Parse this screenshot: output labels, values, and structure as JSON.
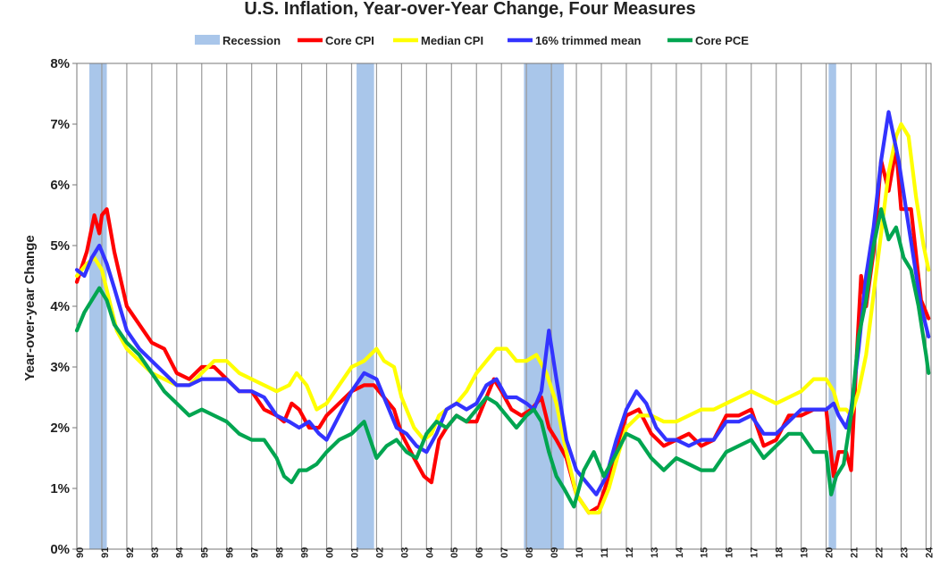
{
  "chart_data": {
    "type": "line",
    "title": "U.S. Inflation, Year-over-Year Change, Four Measures",
    "ylabel": "Year-over-year Change",
    "xlabel": "",
    "ylim": [
      0,
      8
    ],
    "y_ticks": [
      "0%",
      "1%",
      "2%",
      "3%",
      "4%",
      "5%",
      "6%",
      "7%",
      "8%"
    ],
    "xlim": [
      1990,
      2024.2
    ],
    "x_tick_labels": [
      "90",
      "91",
      "92",
      "93",
      "94",
      "95",
      "96",
      "97",
      "98",
      "99",
      "00",
      "01",
      "02",
      "03",
      "04",
      "05",
      "06",
      "07",
      "08",
      "09",
      "10",
      "11",
      "12",
      "13",
      "14",
      "15",
      "16",
      "17",
      "18",
      "19",
      "20",
      "21",
      "22",
      "23",
      "24"
    ],
    "grid": "vertical",
    "legend_position": "top",
    "legend": [
      {
        "label": "Recession",
        "color": "#a9c6ea",
        "kind": "area"
      },
      {
        "label": "Core CPI",
        "color": "#ff0000",
        "kind": "line"
      },
      {
        "label": "Median CPI",
        "color": "#ffff00",
        "kind": "line"
      },
      {
        "label": "16% trimmed mean",
        "color": "#3333ff",
        "kind": "line"
      },
      {
        "label": "Core PCE",
        "color": "#00a550",
        "kind": "line"
      }
    ],
    "recessions": [
      [
        1990.5,
        1991.2
      ],
      [
        2001.2,
        2001.9
      ],
      [
        2007.9,
        2009.5
      ],
      [
        2020.1,
        2020.4
      ]
    ],
    "series": [
      {
        "name": "Core CPI",
        "color": "#ff0000",
        "x": [
          1990,
          1990.4,
          1990.7,
          1990.9,
          1991,
          1991.2,
          1991.5,
          1992,
          1992.5,
          1993,
          1993.5,
          1994,
          1994.5,
          1995,
          1995.5,
          1996,
          1996.5,
          1997,
          1997.5,
          1998,
          1998.3,
          1998.6,
          1998.9,
          1999.3,
          1999.7,
          2000,
          2000.5,
          2001,
          2001.5,
          2001.9,
          2002.3,
          2002.7,
          2003,
          2003.5,
          2003.9,
          2004.2,
          2004.5,
          2004.8,
          2005.2,
          2005.6,
          2006,
          2006.3,
          2006.7,
          2007,
          2007.4,
          2007.8,
          2008.2,
          2008.6,
          2008.9,
          2009.2,
          2009.6,
          2010,
          2010.5,
          2010.9,
          2011.3,
          2011.7,
          2012,
          2012.5,
          2013,
          2013.5,
          2014,
          2014.5,
          2015,
          2015.5,
          2016,
          2016.5,
          2017,
          2017.5,
          2018,
          2018.5,
          2019,
          2019.5,
          2020,
          2020.3,
          2020.5,
          2020.8,
          2021,
          2021.2,
          2021.4,
          2021.6,
          2021.9,
          2022.2,
          2022.5,
          2022.8,
          2023,
          2023.4,
          2023.8,
          2024.1
        ],
        "values": [
          4.4,
          4.9,
          5.5,
          5.2,
          5.5,
          5.6,
          4.9,
          4.0,
          3.7,
          3.4,
          3.3,
          2.9,
          2.8,
          3.0,
          3.0,
          2.8,
          2.6,
          2.6,
          2.3,
          2.2,
          2.1,
          2.4,
          2.3,
          2.0,
          2.0,
          2.2,
          2.4,
          2.6,
          2.7,
          2.7,
          2.5,
          2.3,
          1.9,
          1.5,
          1.2,
          1.1,
          1.8,
          2.0,
          2.2,
          2.1,
          2.1,
          2.4,
          2.8,
          2.6,
          2.3,
          2.2,
          2.3,
          2.5,
          2.0,
          1.8,
          1.5,
          0.9,
          0.6,
          0.7,
          1.2,
          1.8,
          2.2,
          2.3,
          1.9,
          1.7,
          1.8,
          1.9,
          1.7,
          1.8,
          2.2,
          2.2,
          2.3,
          1.7,
          1.8,
          2.2,
          2.2,
          2.3,
          2.3,
          1.2,
          1.6,
          1.6,
          1.3,
          3.0,
          4.5,
          4.0,
          4.9,
          6.4,
          5.9,
          6.6,
          5.6,
          5.6,
          4.1,
          3.8
        ]
      },
      {
        "name": "Median CPI",
        "color": "#ffff00",
        "x": [
          1990,
          1990.4,
          1990.7,
          1991,
          1991.3,
          1991.6,
          1992,
          1992.5,
          1993,
          1993.5,
          1994,
          1994.5,
          1995,
          1995.5,
          1996,
          1996.5,
          1997,
          1997.5,
          1998,
          1998.5,
          1998.8,
          1999.2,
          1999.6,
          2000,
          2000.5,
          2001,
          2001.5,
          2002,
          2002.3,
          2002.7,
          2003,
          2003.5,
          2003.9,
          2004.2,
          2004.5,
          2004.8,
          2005.2,
          2005.6,
          2006,
          2006.4,
          2006.8,
          2007.2,
          2007.6,
          2008,
          2008.4,
          2008.8,
          2009.2,
          2009.6,
          2010,
          2010.5,
          2010.9,
          2011.3,
          2011.7,
          2012,
          2012.5,
          2013,
          2013.5,
          2014,
          2014.5,
          2015,
          2015.5,
          2016,
          2016.5,
          2017,
          2017.5,
          2018,
          2018.5,
          2019,
          2019.5,
          2020,
          2020.3,
          2020.5,
          2020.8,
          2021,
          2021.3,
          2021.6,
          2021.9,
          2022.2,
          2022.5,
          2022.8,
          2023,
          2023.3,
          2023.6,
          2023.9,
          2024.1
        ],
        "values": [
          4.5,
          4.7,
          4.8,
          4.6,
          4.1,
          3.6,
          3.3,
          3.1,
          2.9,
          2.8,
          2.7,
          2.7,
          2.9,
          3.1,
          3.1,
          2.9,
          2.8,
          2.7,
          2.6,
          2.7,
          2.9,
          2.7,
          2.3,
          2.4,
          2.7,
          3.0,
          3.1,
          3.3,
          3.1,
          3.0,
          2.5,
          2.0,
          1.8,
          1.9,
          2.2,
          2.3,
          2.4,
          2.6,
          2.9,
          3.1,
          3.3,
          3.3,
          3.1,
          3.1,
          3.2,
          2.9,
          2.4,
          1.6,
          0.9,
          0.6,
          0.6,
          1.0,
          1.6,
          2.0,
          2.2,
          2.2,
          2.1,
          2.1,
          2.2,
          2.3,
          2.3,
          2.4,
          2.5,
          2.6,
          2.5,
          2.4,
          2.5,
          2.6,
          2.8,
          2.8,
          2.6,
          2.3,
          2.3,
          2.2,
          2.6,
          3.2,
          4.2,
          5.2,
          6.2,
          6.8,
          7.0,
          6.8,
          5.8,
          5.0,
          4.6
        ]
      },
      {
        "name": "16% trimmed mean",
        "color": "#3333ff",
        "x": [
          1990,
          1990.3,
          1990.6,
          1990.9,
          1991.2,
          1991.5,
          1992,
          1992.5,
          1993,
          1993.5,
          1994,
          1994.5,
          1995,
          1995.5,
          1996,
          1996.5,
          1997,
          1997.5,
          1998,
          1998.5,
          1998.9,
          1999.3,
          1999.7,
          2000,
          2000.5,
          2001,
          2001.5,
          2002,
          2002.4,
          2002.8,
          2003.2,
          2003.6,
          2004,
          2004.4,
          2004.8,
          2005.2,
          2005.6,
          2006,
          2006.4,
          2006.8,
          2007.2,
          2007.6,
          2008,
          2008.3,
          2008.6,
          2008.9,
          2009.2,
          2009.6,
          2010,
          2010.4,
          2010.8,
          2011.2,
          2011.6,
          2012,
          2012.4,
          2012.8,
          2013.2,
          2013.6,
          2014,
          2014.5,
          2015,
          2015.5,
          2016,
          2016.5,
          2017,
          2017.5,
          2018,
          2018.5,
          2019,
          2019.5,
          2020,
          2020.3,
          2020.5,
          2020.8,
          2021,
          2021.3,
          2021.6,
          2021.9,
          2022.2,
          2022.5,
          2022.7,
          2022.9,
          2023.2,
          2023.5,
          2023.8,
          2024.1
        ],
        "values": [
          4.6,
          4.5,
          4.8,
          5.0,
          4.7,
          4.3,
          3.6,
          3.3,
          3.1,
          2.9,
          2.7,
          2.7,
          2.8,
          2.8,
          2.8,
          2.6,
          2.6,
          2.5,
          2.2,
          2.1,
          2.0,
          2.1,
          1.9,
          1.8,
          2.2,
          2.6,
          2.9,
          2.8,
          2.4,
          2.0,
          1.9,
          1.7,
          1.6,
          1.9,
          2.3,
          2.4,
          2.3,
          2.4,
          2.7,
          2.8,
          2.5,
          2.5,
          2.4,
          2.3,
          2.6,
          3.6,
          2.8,
          1.8,
          1.3,
          1.1,
          0.9,
          1.2,
          1.8,
          2.3,
          2.6,
          2.4,
          2.0,
          1.8,
          1.8,
          1.7,
          1.8,
          1.8,
          2.1,
          2.1,
          2.2,
          1.9,
          1.9,
          2.1,
          2.3,
          2.3,
          2.3,
          2.4,
          2.2,
          2.0,
          2.3,
          3.3,
          4.5,
          5.3,
          6.4,
          7.2,
          6.8,
          6.4,
          5.6,
          4.8,
          4.0,
          3.5
        ]
      },
      {
        "name": "Core PCE",
        "color": "#00a550",
        "x": [
          1990,
          1990.3,
          1990.6,
          1990.9,
          1991.2,
          1991.5,
          1992,
          1992.5,
          1993,
          1993.5,
          1994,
          1994.5,
          1995,
          1995.5,
          1996,
          1996.5,
          1997,
          1997.5,
          1998,
          1998.3,
          1998.6,
          1998.9,
          1999.2,
          1999.6,
          2000,
          2000.5,
          2001,
          2001.5,
          2002,
          2002.4,
          2002.8,
          2003.2,
          2003.6,
          2004,
          2004.4,
          2004.8,
          2005.2,
          2005.6,
          2006,
          2006.4,
          2006.8,
          2007.2,
          2007.6,
          2008,
          2008.3,
          2008.6,
          2008.9,
          2009.2,
          2009.5,
          2009.9,
          2010.3,
          2010.7,
          2011.1,
          2011.5,
          2012,
          2012.5,
          2013,
          2013.5,
          2014,
          2014.5,
          2015,
          2015.5,
          2016,
          2016.5,
          2017,
          2017.5,
          2018,
          2018.5,
          2019,
          2019.5,
          2020,
          2020.2,
          2020.4,
          2020.7,
          2021,
          2021.3,
          2021.6,
          2021.9,
          2022.2,
          2022.5,
          2022.8,
          2023.1,
          2023.4,
          2023.7,
          2024,
          2024.1
        ],
        "values": [
          3.6,
          3.9,
          4.1,
          4.3,
          4.1,
          3.7,
          3.4,
          3.2,
          2.9,
          2.6,
          2.4,
          2.2,
          2.3,
          2.2,
          2.1,
          1.9,
          1.8,
          1.8,
          1.5,
          1.2,
          1.1,
          1.3,
          1.3,
          1.4,
          1.6,
          1.8,
          1.9,
          2.1,
          1.5,
          1.7,
          1.8,
          1.6,
          1.5,
          1.9,
          2.1,
          2.0,
          2.2,
          2.1,
          2.3,
          2.5,
          2.4,
          2.2,
          2.0,
          2.2,
          2.3,
          2.1,
          1.6,
          1.2,
          1.0,
          0.7,
          1.3,
          1.6,
          1.2,
          1.5,
          1.9,
          1.8,
          1.5,
          1.3,
          1.5,
          1.4,
          1.3,
          1.3,
          1.6,
          1.7,
          1.8,
          1.5,
          1.7,
          1.9,
          1.9,
          1.6,
          1.6,
          0.9,
          1.2,
          1.4,
          2.2,
          3.5,
          4.1,
          5.0,
          5.6,
          5.1,
          5.3,
          4.8,
          4.6,
          4.0,
          3.2,
          2.9
        ]
      }
    ]
  }
}
